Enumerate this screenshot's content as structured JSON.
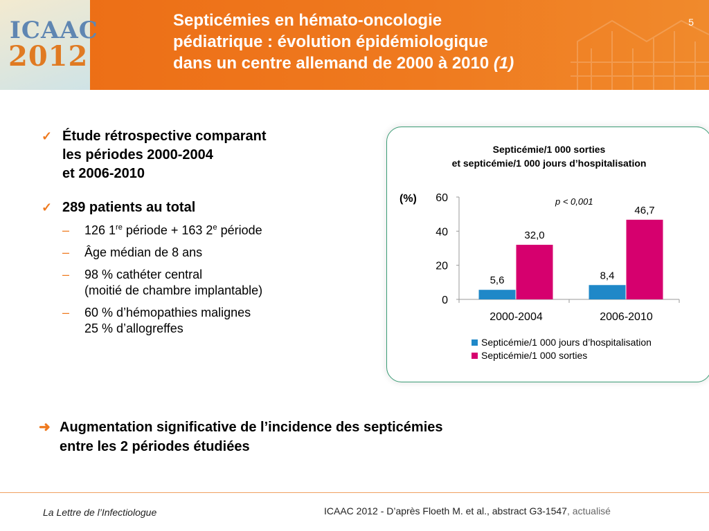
{
  "header": {
    "logo_line1": "ICAAC",
    "logo_line2": "2012",
    "title_line1": "Septicémies en hémato-oncologie",
    "title_line2": "pédiatrique : évolution épidémiologique",
    "title_line3": "dans un centre allemand de 2000 à 2010 ",
    "title_ref": "(1)",
    "page_number": "5"
  },
  "bullets": {
    "b1_line1": "Étude rétrospective comparant",
    "b1_line2": "les périodes 2000-2004",
    "b1_line3": "et 2006-2010",
    "b2": "289 patients au total",
    "s1_a": "126 1",
    "s1_sup1": "re",
    "s1_b": " période + 163 2",
    "s1_sup2": "e",
    "s1_c": " période",
    "s2": "Âge médian de 8 ans",
    "s3_line1": "98 % cathéter central",
    "s3_line2": "(moitié de chambre implantable)",
    "s4_line1": "60 % d’hémopathies malignes",
    "s4_line2": "25 % d’allogreffes"
  },
  "chart_data": {
    "type": "bar",
    "title_line1": "Septicémie/1 000 sorties",
    "title_line2": "et septicémie/1 000 jours d’hospitalisation",
    "ylabel": "(%)",
    "ylim": [
      0,
      60
    ],
    "yticks": [
      "0",
      "20",
      "40",
      "60"
    ],
    "annotation": "p < 0,001",
    "categories": [
      "2000-2004",
      "2006-2010"
    ],
    "series": [
      {
        "name": "Septicémie/1 000 jours d’hospitalisation",
        "values": [
          5.6,
          8.4
        ],
        "labels": [
          "5,6",
          "8,4"
        ],
        "color": "#1f88c8"
      },
      {
        "name": "Septicémie/1 000 sorties",
        "values": [
          32.0,
          46.7
        ],
        "labels": [
          "32,0",
          "46,7"
        ],
        "color": "#d6006e"
      }
    ],
    "legend_position": "bottom"
  },
  "conclusion": {
    "line1": "Augmentation significative de l’incidence des septicémies",
    "line2": "entre les 2 périodes étudiées"
  },
  "footer": {
    "left": "La Lettre de l’Infectiologue",
    "right": "ICAAC 2012 - D’après Floeth M. et al., abstract G3-1547",
    "right_extra": ", actualisé"
  },
  "colors": {
    "header_orange": "#ef7a1f",
    "chart_border": "#3a9b74"
  }
}
